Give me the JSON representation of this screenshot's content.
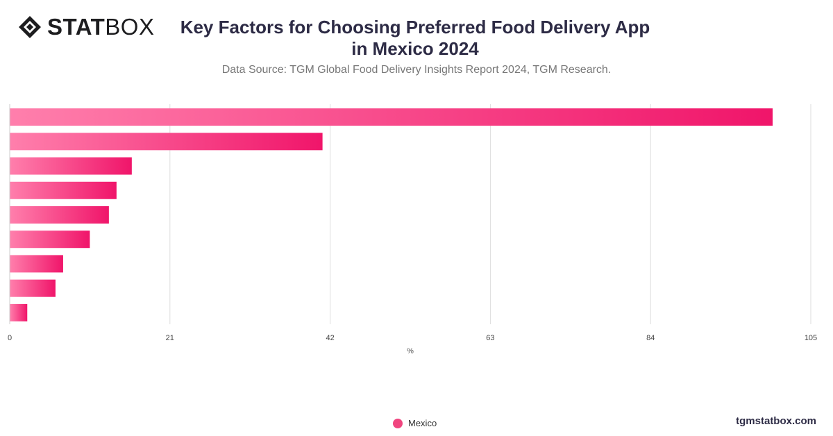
{
  "brand": {
    "name_bold": "STAT",
    "name_light": "BOX"
  },
  "header": {
    "title_line1": "Key Factors for Choosing Preferred Food Delivery App",
    "title_line2": "in Mexico  2024",
    "subtitle": "Data Source: TGM Global Food Delivery Insights Report 2024, TGM Research."
  },
  "footer": {
    "site": "tgmstatbox.com"
  },
  "colors": {
    "bar_start": "#ff7fac",
    "bar_end": "#f0156a",
    "grid": "#dddddd",
    "title": "#2d2b45"
  },
  "chart_data": {
    "type": "bar",
    "orientation": "horizontal",
    "title": "Key Factors for Choosing Preferred Food Delivery App in Mexico  2024",
    "xlabel": "%",
    "ylabel": "",
    "xlim": [
      0,
      105
    ],
    "x_ticks": [
      "0",
      "21",
      "42",
      "63",
      "84",
      "105"
    ],
    "categories": [
      "",
      "",
      "",
      "",
      "",
      "",
      "",
      "",
      ""
    ],
    "series": [
      {
        "name": "Mexico",
        "values": [
          100,
          41,
          16,
          14,
          13,
          10.5,
          7,
          6,
          2.3
        ]
      }
    ],
    "grid": true,
    "legend": "bottom-center"
  }
}
